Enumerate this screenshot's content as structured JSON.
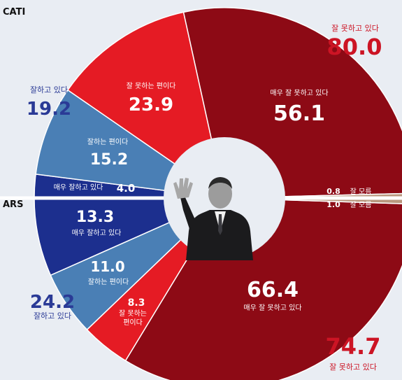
{
  "chart_data": {
    "type": "pie",
    "style": "split donut (top half / bottom half)",
    "colors": {
      "background": "#e9edf3",
      "very_bad": "#8d0a15",
      "bad": "#e51b24",
      "good": "#4a7fb5",
      "very_good": "#1c2f8e",
      "unknown": "#b9977e",
      "total_bad_text": "#cc1424",
      "total_good_text": "#2a3a96"
    },
    "charts": [
      {
        "name": "CATI",
        "half": "top",
        "segments": [
          {
            "label": "매우 잘 못하고 있다",
            "value": 56.1,
            "color_key": "very_bad"
          },
          {
            "label": "잘 못하는 편이다",
            "value": 23.9,
            "color_key": "bad"
          },
          {
            "label": "잘하는 편이다",
            "value": 15.2,
            "color_key": "good"
          },
          {
            "label": "매우 잘하고 있다",
            "value": 4.0,
            "color_key": "very_good"
          },
          {
            "label": "잘 모름",
            "value": 0.8,
            "color_key": "unknown"
          }
        ],
        "totals": [
          {
            "label": "잘 못하고 있다",
            "value": "80.0",
            "color_key": "total_bad_text"
          },
          {
            "label": "잘하고 있다",
            "value": "19.2",
            "color_key": "total_good_text"
          }
        ]
      },
      {
        "name": "ARS",
        "half": "bottom",
        "segments": [
          {
            "label": "잘 모름",
            "value": 1.0,
            "color_key": "unknown"
          },
          {
            "label": "매우 잘하고 있다",
            "value": 13.3,
            "color_key": "very_good"
          },
          {
            "label": "잘하는 편이다",
            "value": 11.0,
            "color_key": "good"
          },
          {
            "label": "잘 못하는 편이다",
            "value": 8.3,
            "color_key": "bad"
          },
          {
            "label": "매우 잘 못하고 있다",
            "value": 66.4,
            "color_key": "very_bad"
          }
        ],
        "totals": [
          {
            "label": "잘 못하고 있다",
            "value": "74.7",
            "color_key": "total_bad_text"
          },
          {
            "label": "잘하고 있다",
            "value": "24.2",
            "color_key": "total_good_text"
          }
        ]
      }
    ]
  }
}
